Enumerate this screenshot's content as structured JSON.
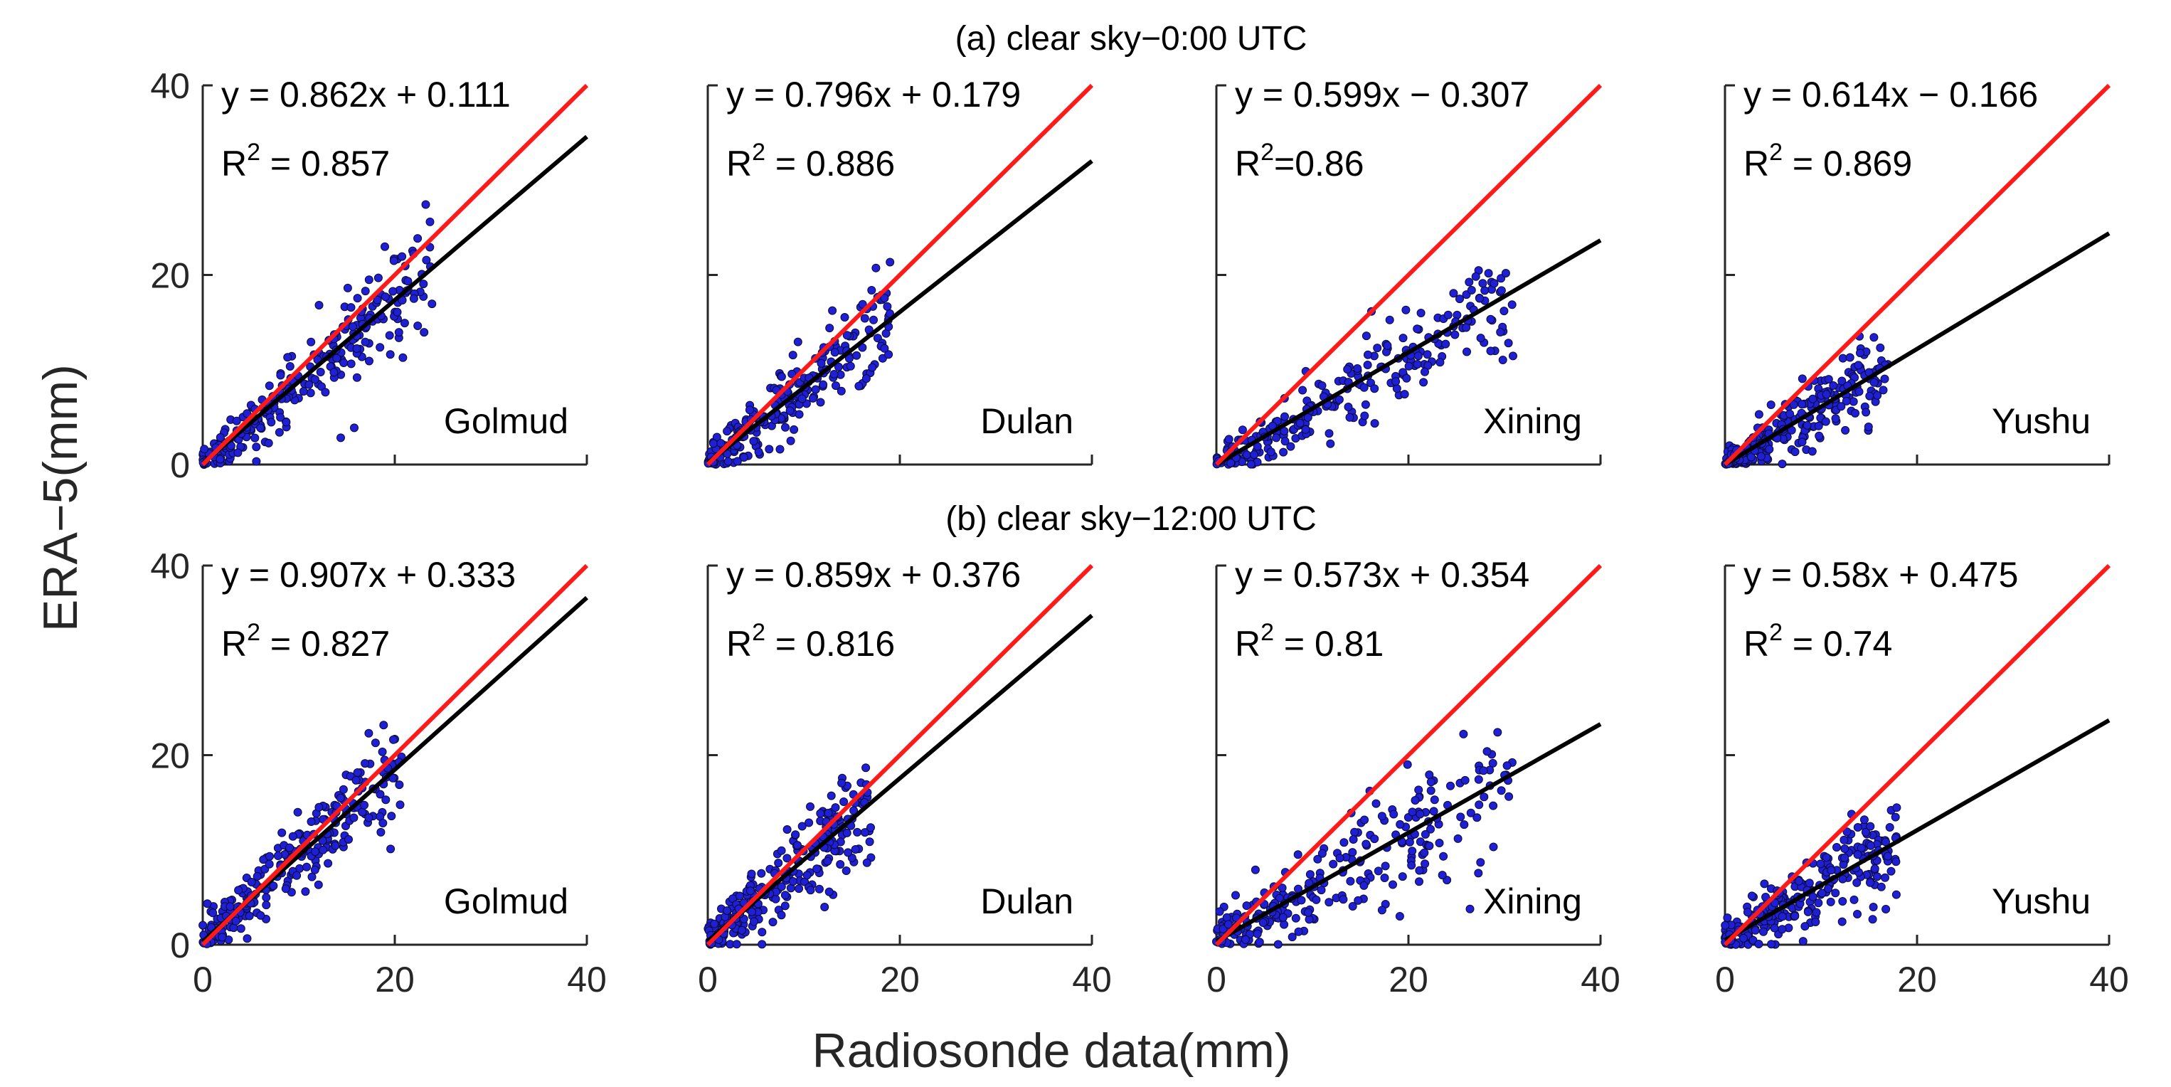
{
  "chart_data": {
    "type": "scatter",
    "xlabel": "Radiosonde data(mm)",
    "ylabel": "ERA−5(mm)",
    "xlim": [
      0,
      40
    ],
    "ylim": [
      0,
      40
    ],
    "x_ticks": [
      "0",
      "20",
      "40"
    ],
    "y_ticks": [
      "0",
      "20",
      "40"
    ],
    "legend_marker_color": "#1f1fd6",
    "fit_line_color": "#000000",
    "one_to_one_color": "#ff1a1a",
    "rows": [
      {
        "title": "(a) clear sky−0:00 UTC",
        "panels": [
          {
            "station": "Golmud",
            "slope": 0.862,
            "intercept": 0.111,
            "eq_text": "y = 0.862x + 0.111",
            "r2_value": "0.857",
            "r2_label": "R",
            "r2_sup": "2",
            "r2_eq": " = 0.857",
            "x_max_data": 24,
            "spread": 2.2
          },
          {
            "station": "Dulan",
            "slope": 0.796,
            "intercept": 0.179,
            "eq_text": "y = 0.796x + 0.179",
            "r2_value": "0.886",
            "r2_label": "R",
            "r2_sup": "2",
            "r2_eq": " = 0.886",
            "x_max_data": 19,
            "spread": 2.0
          },
          {
            "station": "Xining",
            "slope": 0.599,
            "intercept": -0.307,
            "eq_text": "y = 0.599x − 0.307",
            "r2_value": "0.86",
            "r2_label": "R",
            "r2_sup": "2",
            "r2_eq": "=0.86",
            "x_max_data": 31,
            "spread": 2.2
          },
          {
            "station": "Yushu",
            "slope": 0.614,
            "intercept": -0.166,
            "eq_text": "y = 0.614x − 0.166",
            "r2_value": "0.869",
            "r2_label": "R",
            "r2_sup": "2",
            "r2_eq": " = 0.869",
            "x_max_data": 17,
            "spread": 1.6
          }
        ]
      },
      {
        "title": "(b) clear sky−12:00 UTC",
        "panels": [
          {
            "station": "Golmud",
            "slope": 0.907,
            "intercept": 0.333,
            "eq_text": "y = 0.907x + 0.333",
            "r2_value": "0.827",
            "r2_label": "R",
            "r2_sup": "2",
            "r2_eq": " = 0.827",
            "x_max_data": 21,
            "spread": 2.2
          },
          {
            "station": "Dulan",
            "slope": 0.859,
            "intercept": 0.376,
            "eq_text": "y = 0.859x + 0.376",
            "r2_value": "0.816",
            "r2_label": "R",
            "r2_sup": "2",
            "r2_eq": " = 0.816",
            "x_max_data": 17,
            "spread": 2.2
          },
          {
            "station": "Xining",
            "slope": 0.573,
            "intercept": 0.354,
            "eq_text": "y = 0.573x + 0.354",
            "r2_value": "0.81",
            "r2_label": "R",
            "r2_sup": "2",
            "r2_eq": " = 0.81",
            "x_max_data": 31,
            "spread": 2.8
          },
          {
            "station": "Yushu",
            "slope": 0.58,
            "intercept": 0.475,
            "eq_text": "y = 0.58x + 0.475",
            "r2_value": "0.74",
            "r2_label": "R",
            "r2_sup": "2",
            "r2_eq": " = 0.74",
            "x_max_data": 18,
            "spread": 2.0
          }
        ]
      }
    ]
  }
}
